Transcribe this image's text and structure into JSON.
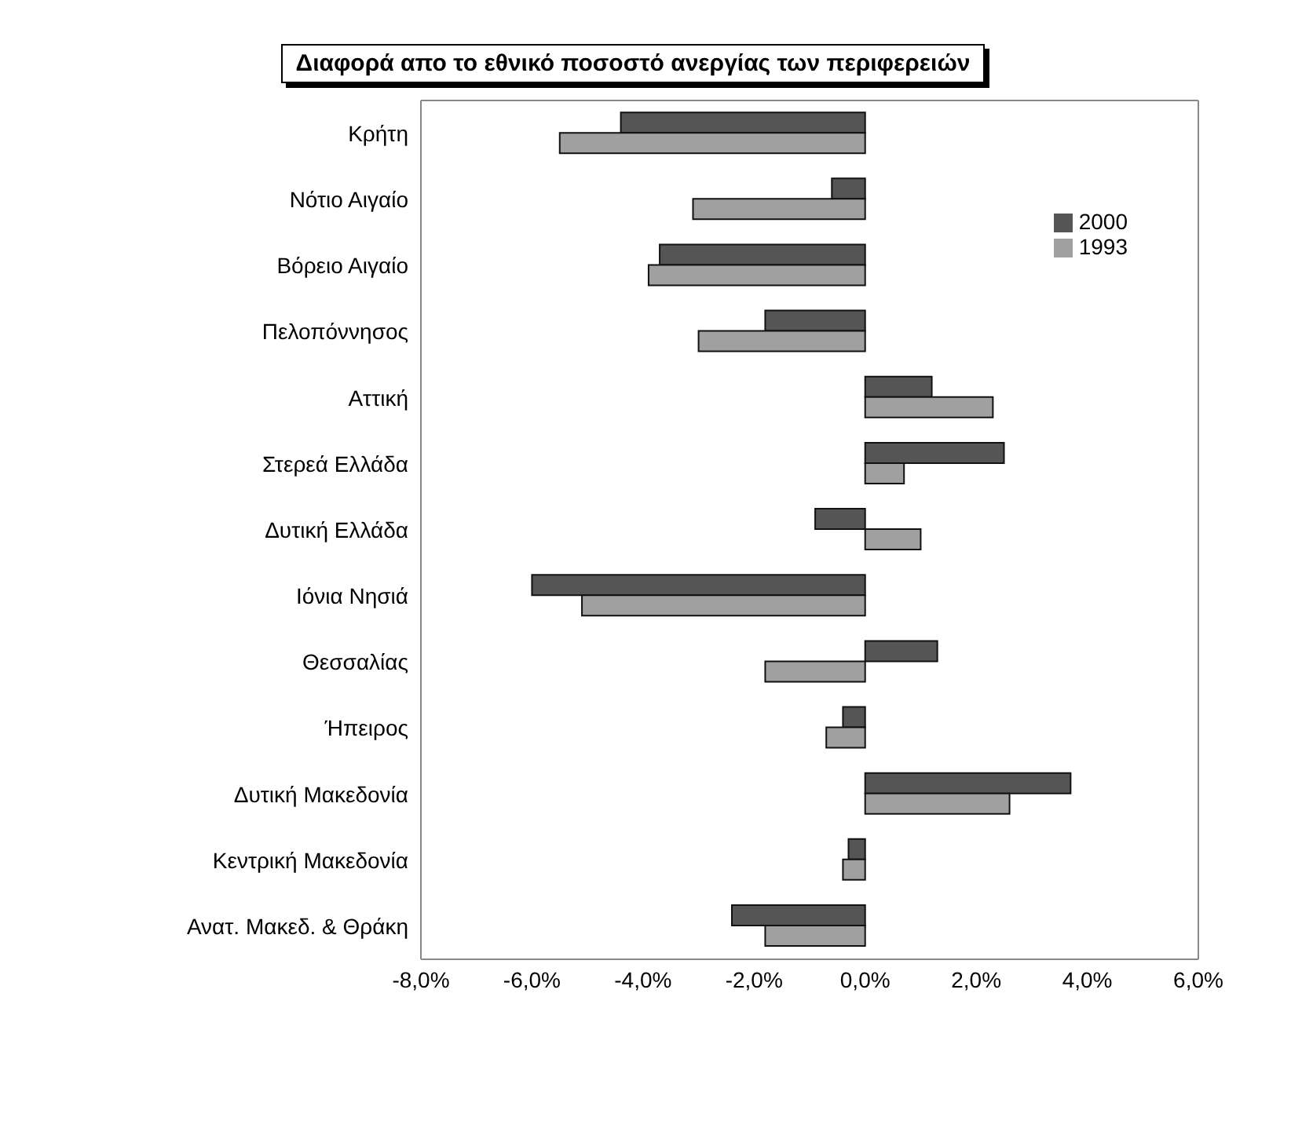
{
  "chart_data": {
    "type": "bar",
    "orientation": "horizontal",
    "title": "Διαφορά απο το εθνικό ποσοστό ανεργίας των περιφερειών",
    "categories": [
      "Κρήτη",
      "Νότιο Αιγαίο",
      "Βόρειο Αιγαίο",
      "Πελοπόννησος",
      "Αττική",
      "Στερεά Ελλάδα",
      "Δυτική Ελλάδα",
      "Ιόνια Νησιά",
      "Θεσσαλίας",
      "Ήπειρος",
      "Δυτική Μακεδονία",
      "Κεντρική Μακεδονία",
      "Ανατ. Μακεδ. & Θράκη"
    ],
    "series": [
      {
        "name": "2000",
        "color": "#555555",
        "values": [
          -4.4,
          -0.6,
          -3.7,
          -1.8,
          1.2,
          2.5,
          -0.9,
          -6.0,
          1.3,
          -0.4,
          3.7,
          -0.3,
          -2.4
        ]
      },
      {
        "name": "1993",
        "color": "#a0a0a0",
        "values": [
          -5.5,
          -3.1,
          -3.9,
          -3.0,
          2.3,
          0.7,
          1.0,
          -5.1,
          -1.8,
          -0.7,
          2.6,
          -0.4,
          -1.8
        ]
      }
    ],
    "xlim": [
      -8,
      6
    ],
    "xticks": [
      {
        "value": -8,
        "label": "-8,0%"
      },
      {
        "value": -6,
        "label": "-6,0%"
      },
      {
        "value": -4,
        "label": "-4,0%"
      },
      {
        "value": -2,
        "label": "-2,0%"
      },
      {
        "value": 0,
        "label": "0,0%"
      },
      {
        "value": 2,
        "label": "2,0%"
      },
      {
        "value": 4,
        "label": "4,0%"
      },
      {
        "value": 6,
        "label": "6,0%"
      }
    ],
    "legend": "top right",
    "grid": false
  }
}
